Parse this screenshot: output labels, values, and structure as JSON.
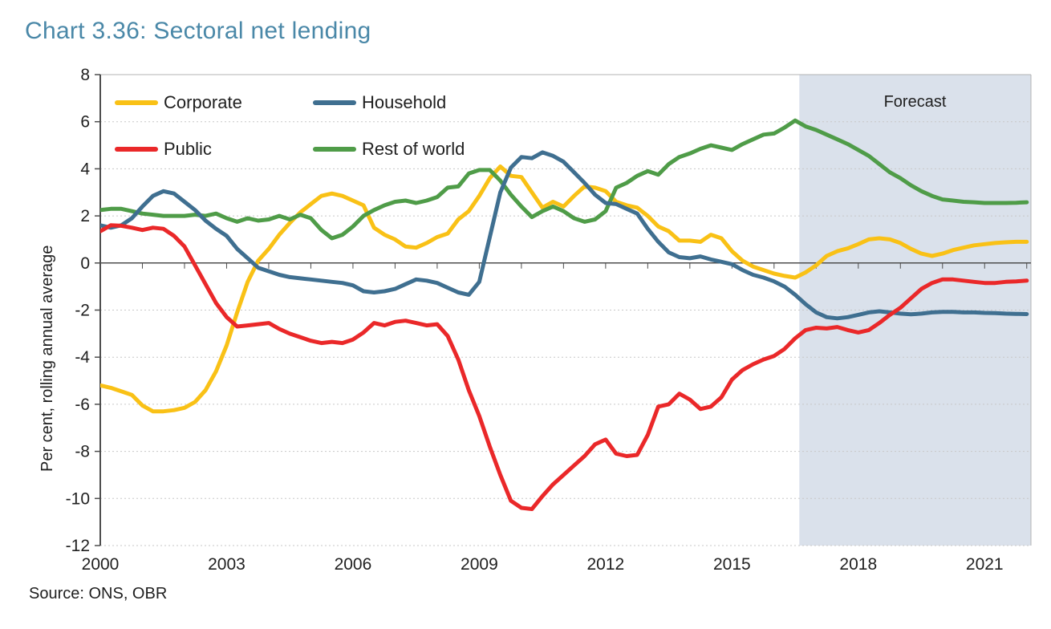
{
  "title": "Chart 3.36: Sectoral net lending",
  "source": "Source: ONS, OBR",
  "chart_data": {
    "type": "line",
    "title": "Chart 3.36: Sectoral net lending",
    "xlabel": "",
    "ylabel": "Per cent, rolling annual average",
    "title_color": "#4A88A8",
    "text_color": "#1f1f1f",
    "axis_color": "#4d4d4d",
    "grid_color": "#c7c7c7",
    "border_color": "#b3b3b3",
    "grid": "dotted horizontal gridlines every 2 units",
    "legend_position": "top-left inside plot",
    "xlim": [
      2000,
      2022.1
    ],
    "ylim": [
      -12,
      8
    ],
    "x_ticks": [
      2000,
      2003,
      2006,
      2009,
      2012,
      2015,
      2018,
      2021
    ],
    "x_minor_tick_step": 1,
    "y_ticks": [
      8,
      6,
      4,
      2,
      0,
      -2,
      -4,
      -6,
      -8,
      -10,
      -12
    ],
    "forecast_label": "Forecast",
    "forecast_start": 2016.6,
    "forecast_band_color": "#DAE1EB",
    "x_start": 2000,
    "x_step": 0.25,
    "draw_order": [
      0,
      3,
      1,
      2
    ],
    "series": [
      {
        "name": "Corporate",
        "color": "#F9C116",
        "values": [
          -5.2,
          -5.3,
          -5.45,
          -5.6,
          -6.05,
          -6.3,
          -6.3,
          -6.25,
          -6.15,
          -5.9,
          -5.4,
          -4.6,
          -3.5,
          -2.1,
          -0.8,
          0.1,
          0.6,
          1.2,
          1.7,
          2.15,
          2.5,
          2.85,
          2.95,
          2.85,
          2.65,
          2.45,
          1.5,
          1.2,
          1.0,
          0.7,
          0.65,
          0.85,
          1.1,
          1.25,
          1.85,
          2.2,
          2.85,
          3.6,
          4.1,
          3.7,
          3.65,
          3.0,
          2.35,
          2.6,
          2.4,
          2.85,
          3.25,
          3.2,
          3.05,
          2.6,
          2.45,
          2.35,
          2.0,
          1.55,
          1.35,
          0.95,
          0.95,
          0.9,
          1.2,
          1.05,
          0.5,
          0.1,
          -0.15,
          -0.3,
          -0.45,
          -0.55,
          -0.62,
          -0.4,
          -0.1,
          0.3,
          0.5,
          0.62,
          0.8,
          1.0,
          1.05,
          1.0,
          0.85,
          0.6,
          0.4,
          0.3,
          0.4,
          0.55,
          0.65,
          0.75,
          0.8,
          0.85,
          0.88,
          0.9,
          0.9
        ]
      },
      {
        "name": "Household",
        "color": "#3F6F90",
        "values": [
          1.6,
          1.5,
          1.6,
          1.9,
          2.4,
          2.85,
          3.05,
          2.95,
          2.6,
          2.25,
          1.8,
          1.45,
          1.15,
          0.6,
          0.2,
          -0.2,
          -0.35,
          -0.5,
          -0.6,
          -0.65,
          -0.7,
          -0.75,
          -0.8,
          -0.85,
          -0.95,
          -1.2,
          -1.25,
          -1.2,
          -1.1,
          -0.9,
          -0.7,
          -0.75,
          -0.85,
          -1.05,
          -1.25,
          -1.35,
          -0.8,
          1.1,
          3.0,
          4.05,
          4.5,
          4.45,
          4.7,
          4.55,
          4.3,
          3.85,
          3.4,
          2.9,
          2.55,
          2.5,
          2.3,
          2.1,
          1.45,
          0.9,
          0.45,
          0.25,
          0.2,
          0.28,
          0.15,
          0.05,
          -0.05,
          -0.3,
          -0.5,
          -0.62,
          -0.78,
          -1.0,
          -1.35,
          -1.75,
          -2.1,
          -2.3,
          -2.35,
          -2.3,
          -2.2,
          -2.1,
          -2.05,
          -2.1,
          -2.15,
          -2.18,
          -2.15,
          -2.1,
          -2.08,
          -2.08,
          -2.1,
          -2.1,
          -2.12,
          -2.13,
          -2.15,
          -2.16,
          -2.17
        ]
      },
      {
        "name": "Public",
        "color": "#EA2829",
        "values": [
          1.35,
          1.6,
          1.58,
          1.5,
          1.4,
          1.5,
          1.45,
          1.15,
          0.7,
          -0.1,
          -0.9,
          -1.7,
          -2.3,
          -2.7,
          -2.65,
          -2.6,
          -2.55,
          -2.8,
          -3.0,
          -3.15,
          -3.3,
          -3.4,
          -3.35,
          -3.4,
          -3.25,
          -2.95,
          -2.55,
          -2.65,
          -2.5,
          -2.45,
          -2.55,
          -2.65,
          -2.6,
          -3.1,
          -4.1,
          -5.4,
          -6.5,
          -7.8,
          -9.0,
          -10.1,
          -10.4,
          -10.45,
          -9.9,
          -9.4,
          -9.0,
          -8.6,
          -8.2,
          -7.7,
          -7.5,
          -8.1,
          -8.2,
          -8.15,
          -7.3,
          -6.1,
          -6.0,
          -5.55,
          -5.8,
          -6.2,
          -6.1,
          -5.7,
          -4.95,
          -4.55,
          -4.3,
          -4.1,
          -3.95,
          -3.65,
          -3.2,
          -2.85,
          -2.75,
          -2.78,
          -2.72,
          -2.85,
          -2.95,
          -2.85,
          -2.55,
          -2.2,
          -1.9,
          -1.5,
          -1.1,
          -0.85,
          -0.7,
          -0.7,
          -0.75,
          -0.8,
          -0.85,
          -0.85,
          -0.8,
          -0.78,
          -0.75
        ]
      },
      {
        "name": "Rest of world",
        "color": "#4F9C48",
        "values": [
          2.25,
          2.3,
          2.3,
          2.2,
          2.1,
          2.05,
          2.0,
          2.0,
          2.0,
          2.05,
          2.0,
          2.1,
          1.9,
          1.75,
          1.9,
          1.8,
          1.85,
          2.0,
          1.85,
          2.05,
          1.9,
          1.4,
          1.05,
          1.2,
          1.55,
          2.0,
          2.25,
          2.45,
          2.6,
          2.65,
          2.55,
          2.65,
          2.8,
          3.2,
          3.25,
          3.8,
          3.95,
          3.95,
          3.5,
          2.9,
          2.4,
          1.95,
          2.2,
          2.4,
          2.2,
          1.9,
          1.75,
          1.85,
          2.2,
          3.2,
          3.4,
          3.7,
          3.9,
          3.75,
          4.2,
          4.5,
          4.65,
          4.85,
          5.0,
          4.9,
          4.8,
          5.05,
          5.25,
          5.45,
          5.5,
          5.75,
          6.05,
          5.8,
          5.65,
          5.45,
          5.25,
          5.05,
          4.8,
          4.55,
          4.2,
          3.85,
          3.6,
          3.3,
          3.05,
          2.85,
          2.7,
          2.65,
          2.6,
          2.58,
          2.55,
          2.55,
          2.55,
          2.56,
          2.58
        ]
      }
    ]
  }
}
